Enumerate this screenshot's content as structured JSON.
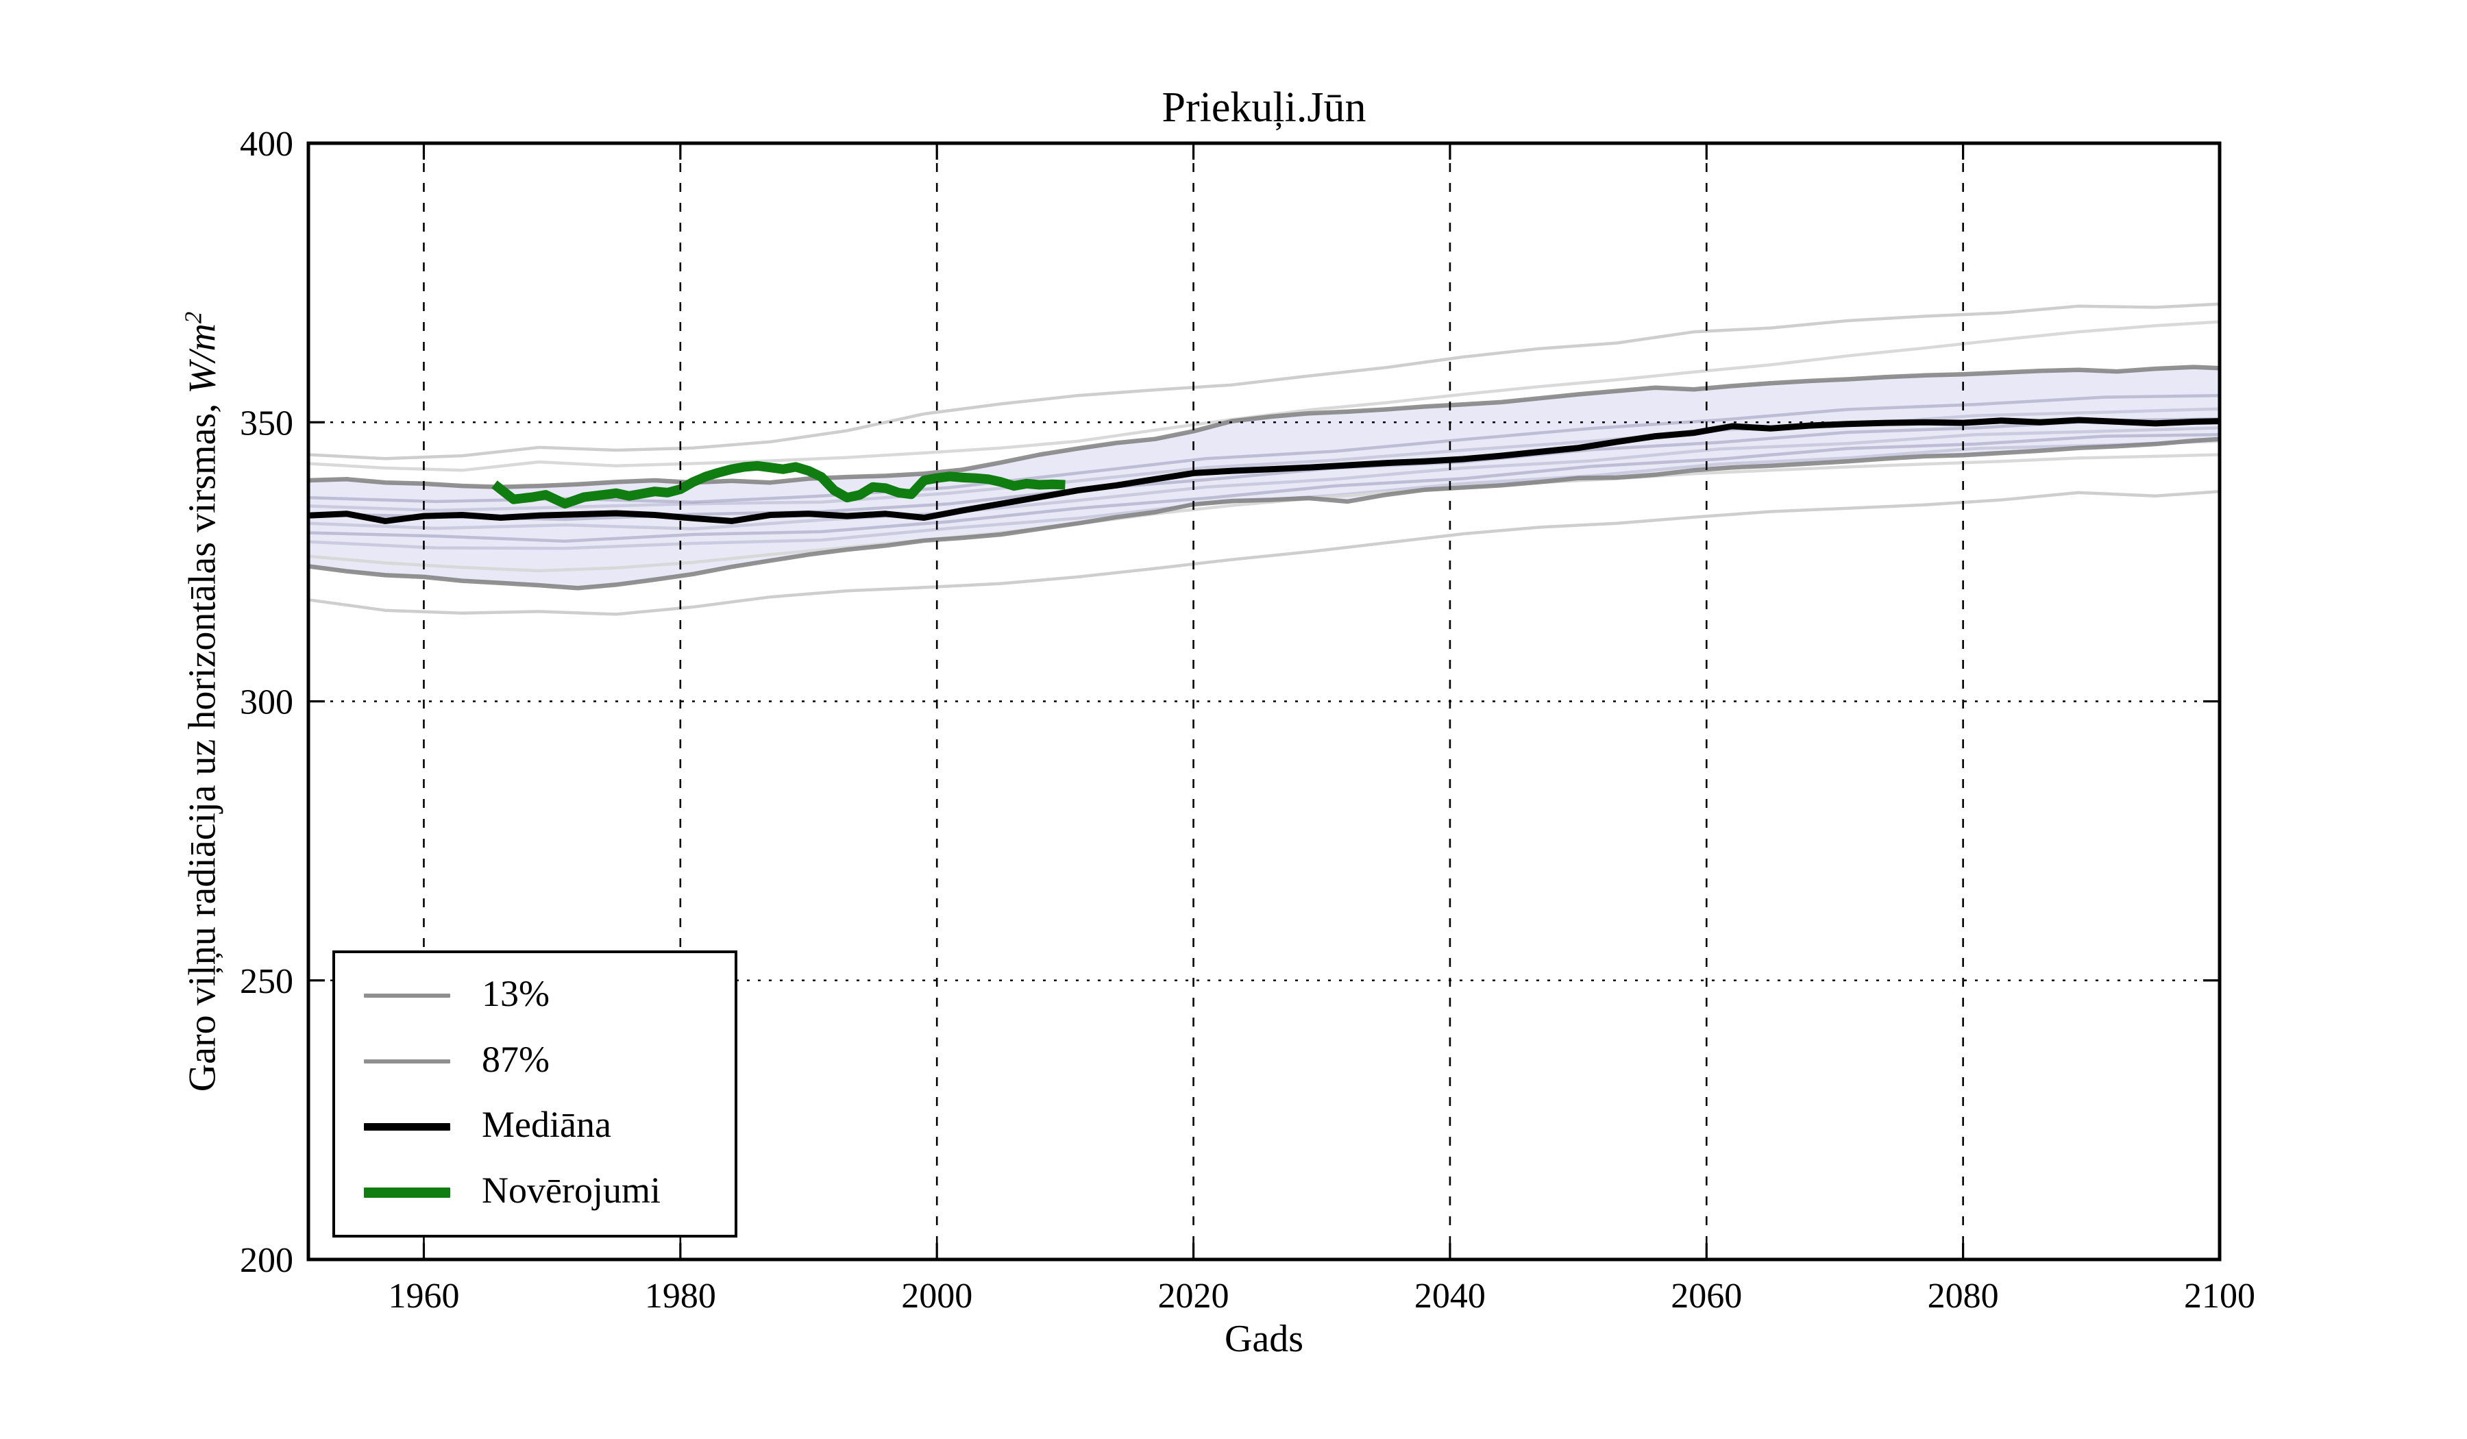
{
  "chart_data": {
    "type": "line",
    "title": "Priekuļi.Jūn",
    "xlabel": "Gads",
    "ylabel_text": "Garo viļņu radiācija uz horizontālas virsmas, ",
    "ylabel_math": "W/m",
    "ylabel_exponent": "2",
    "xlim": [
      1951,
      2100
    ],
    "ylim": [
      200,
      400
    ],
    "xticks": [
      1960,
      1980,
      2000,
      2020,
      2040,
      2060,
      2080,
      2100
    ],
    "yticks": [
      200,
      250,
      300,
      350,
      400
    ],
    "grid": true,
    "legend_position": "lower-left",
    "colors": {
      "background": "#ffffff",
      "frame": "#000000",
      "grid": "#000000",
      "band_fill": "#d8d8f2",
      "band_edge": "#7f7f7f",
      "median": "#000000",
      "observations": "#0f7d0f",
      "ensemble_outer": "#cbcbcb",
      "ensemble_outer2": "#d7d7d7",
      "ensemble_inner": "#8f8fb0",
      "legend_gray": "#8f8f8f"
    },
    "band": {
      "years": [
        1951,
        1954,
        1957,
        1960,
        1963,
        1966,
        1969,
        1972,
        1975,
        1978,
        1981,
        1984,
        1987,
        1990,
        1993,
        1996,
        1999,
        2002,
        2005,
        2008,
        2011,
        2014,
        2017,
        2020,
        2023,
        2026,
        2029,
        2032,
        2035,
        2038,
        2041,
        2044,
        2047,
        2050,
        2053,
        2056,
        2059,
        2062,
        2065,
        2068,
        2071,
        2074,
        2077,
        2080,
        2083,
        2086,
        2089,
        2092,
        2095,
        2098,
        2100
      ],
      "upper_87": [
        339.6,
        339.8,
        339.2,
        339.0,
        338.6,
        338.4,
        338.6,
        338.9,
        339.3,
        339.6,
        339.2,
        339.5,
        339.2,
        339.9,
        340.2,
        340.4,
        340.8,
        341.5,
        342.8,
        344.2,
        345.3,
        346.3,
        347.0,
        348.4,
        350.2,
        351.0,
        351.6,
        351.9,
        352.3,
        352.8,
        353.2,
        353.6,
        354.3,
        355.0,
        355.6,
        356.2,
        355.9,
        356.5,
        357.0,
        357.4,
        357.7,
        358.1,
        358.4,
        358.6,
        358.9,
        359.2,
        359.4,
        359.1,
        359.6,
        359.9,
        359.7
      ],
      "lower_13": [
        324.2,
        323.3,
        322.6,
        322.3,
        321.6,
        321.2,
        320.8,
        320.3,
        320.9,
        321.8,
        322.8,
        324.1,
        325.2,
        326.3,
        327.2,
        327.9,
        328.8,
        329.3,
        329.9,
        330.9,
        331.9,
        333.0,
        333.9,
        335.3,
        335.9,
        336.1,
        336.4,
        335.8,
        337.0,
        337.9,
        338.3,
        338.7,
        339.3,
        340.0,
        340.1,
        340.6,
        341.4,
        341.9,
        342.2,
        342.6,
        343.0,
        343.5,
        343.9,
        344.1,
        344.5,
        344.9,
        345.4,
        345.7,
        346.1,
        346.7,
        347.0
      ]
    },
    "series": [
      {
        "name": "Mediāna",
        "years": [
          1951,
          1954,
          1957,
          1960,
          1963,
          1966,
          1969,
          1972,
          1975,
          1978,
          1981,
          1984,
          1987,
          1990,
          1993,
          1996,
          1999,
          2002,
          2005,
          2008,
          2011,
          2014,
          2017,
          2020,
          2023,
          2026,
          2029,
          2032,
          2035,
          2038,
          2041,
          2044,
          2047,
          2050,
          2053,
          2056,
          2059,
          2062,
          2065,
          2068,
          2071,
          2074,
          2077,
          2080,
          2083,
          2086,
          2089,
          2092,
          2095,
          2098,
          2100
        ],
        "values": [
          333.3,
          333.6,
          332.3,
          333.2,
          333.4,
          332.9,
          333.3,
          333.5,
          333.7,
          333.4,
          332.8,
          332.3,
          333.4,
          333.6,
          333.2,
          333.6,
          332.9,
          334.2,
          335.4,
          336.6,
          337.8,
          338.7,
          339.8,
          340.9,
          341.3,
          341.6,
          341.9,
          342.3,
          342.7,
          343.0,
          343.4,
          344.0,
          344.7,
          345.4,
          346.5,
          347.5,
          348.1,
          349.3,
          348.9,
          349.4,
          349.7,
          349.9,
          350.0,
          349.9,
          350.3,
          350.0,
          350.4,
          350.1,
          349.8,
          350.1,
          350.2
        ]
      },
      {
        "name": "Novērojumi",
        "years": [
          1965.5,
          1967,
          1968.5,
          1969.5,
          1971,
          1972.5,
          1974,
          1975,
          1976,
          1977,
          1978,
          1979,
          1980,
          1981,
          1982,
          1983,
          1984,
          1985,
          1986,
          1987,
          1988,
          1989,
          1990,
          1991,
          1992,
          1993,
          1994,
          1995,
          1996,
          1997,
          1998,
          1999,
          2000,
          2001,
          2002,
          2003,
          2004,
          2005,
          2006,
          2007,
          2008,
          2009,
          2010
        ],
        "values": [
          338.9,
          336.2,
          336.6,
          337.0,
          335.4,
          336.6,
          337.0,
          337.3,
          336.8,
          337.2,
          337.6,
          337.4,
          338.0,
          339.3,
          340.3,
          341.0,
          341.6,
          342.0,
          342.2,
          341.9,
          341.6,
          342.0,
          341.3,
          340.2,
          337.8,
          336.5,
          337.0,
          338.4,
          338.2,
          337.4,
          337.1,
          339.6,
          340.0,
          340.3,
          340.1,
          340.0,
          339.8,
          339.3,
          338.6,
          339.0,
          338.8,
          338.9,
          338.8
        ]
      }
    ],
    "outer_lines": [
      {
        "name": "ensemble-max-line",
        "tone": "outer",
        "years": [
          1951,
          1957,
          1963,
          1969,
          1975,
          1981,
          1987,
          1993,
          1999,
          2005,
          2011,
          2017,
          2023,
          2029,
          2035,
          2041,
          2047,
          2053,
          2059,
          2065,
          2071,
          2077,
          2083,
          2089,
          2095,
          2100
        ],
        "values": [
          344.2,
          343.5,
          344.0,
          345.5,
          345.0,
          345.4,
          346.5,
          348.5,
          351.5,
          353.3,
          354.8,
          355.8,
          356.7,
          358.3,
          359.8,
          361.7,
          363.2,
          364.2,
          366.2,
          366.9,
          368.2,
          369.0,
          369.6,
          370.8,
          370.6,
          371.2
        ]
      },
      {
        "name": "ensemble-high-line",
        "tone": "outer2",
        "years": [
          1951,
          1957,
          1963,
          1969,
          1975,
          1981,
          1987,
          1993,
          1999,
          2005,
          2011,
          2017,
          2023,
          2029,
          2035,
          2041,
          2047,
          2053,
          2059,
          2065,
          2071,
          2077,
          2083,
          2089,
          2095,
          2100
        ],
        "values": [
          342.6,
          341.8,
          341.4,
          342.9,
          342.2,
          342.6,
          343.1,
          343.7,
          344.5,
          345.4,
          346.6,
          348.6,
          350.5,
          352.2,
          353.5,
          355.0,
          356.4,
          357.6,
          359.0,
          360.3,
          361.9,
          363.3,
          364.8,
          366.2,
          367.3,
          368.0
        ]
      },
      {
        "name": "ensemble-low-line",
        "tone": "outer2",
        "years": [
          1951,
          1957,
          1963,
          1969,
          1975,
          1981,
          1987,
          1993,
          1999,
          2005,
          2011,
          2017,
          2023,
          2029,
          2035,
          2041,
          2047,
          2053,
          2059,
          2065,
          2071,
          2077,
          2083,
          2089,
          2095,
          2100
        ],
        "values": [
          326.0,
          324.8,
          324.0,
          323.4,
          323.9,
          324.9,
          326.3,
          327.6,
          328.9,
          330.2,
          331.8,
          333.6,
          335.1,
          336.3,
          337.4,
          338.3,
          339.2,
          339.9,
          340.8,
          341.4,
          342.0,
          342.5,
          343.0,
          343.6,
          343.9,
          344.2
        ]
      },
      {
        "name": "ensemble-min-line",
        "tone": "outer",
        "years": [
          1951,
          1957,
          1963,
          1969,
          1975,
          1981,
          1987,
          1993,
          1999,
          2005,
          2011,
          2017,
          2023,
          2029,
          2035,
          2041,
          2047,
          2053,
          2059,
          2065,
          2071,
          2077,
          2083,
          2089,
          2095,
          2100
        ],
        "values": [
          318.2,
          316.3,
          315.8,
          316.1,
          315.6,
          316.9,
          318.7,
          319.8,
          320.4,
          321.1,
          322.3,
          323.8,
          325.4,
          326.8,
          328.4,
          330.0,
          331.2,
          331.9,
          333.0,
          334.0,
          334.6,
          335.2,
          336.1,
          337.4,
          336.8,
          337.6
        ]
      }
    ],
    "ensemble_members": [
      {
        "years": [
          1951,
          1961,
          1971,
          1981,
          1991,
          2001,
          2011,
          2021,
          2031,
          2041,
          2051,
          2061,
          2071,
          2081,
          2091,
          2100
        ],
        "values": [
          336.5,
          335.8,
          336.3,
          335.7,
          336.8,
          338.3,
          340.9,
          343.5,
          344.8,
          346.9,
          348.9,
          350.4,
          352.3,
          353.2,
          354.5,
          354.8
        ]
      },
      {
        "years": [
          1951,
          1961,
          1971,
          1981,
          1991,
          2001,
          2011,
          2021,
          2031,
          2041,
          2051,
          2061,
          2071,
          2081,
          2091,
          2100
        ],
        "values": [
          335.0,
          334.2,
          334.8,
          335.4,
          335.7,
          337.3,
          339.5,
          341.9,
          343.2,
          345.0,
          346.6,
          348.6,
          349.6,
          351.2,
          351.8,
          352.4
        ]
      },
      {
        "years": [
          1951,
          1961,
          1971,
          1981,
          1991,
          2001,
          2011,
          2021,
          2031,
          2041,
          2051,
          2061,
          2071,
          2081,
          2091,
          2100
        ],
        "values": [
          333.6,
          333.1,
          332.6,
          333.5,
          334.0,
          335.4,
          337.9,
          339.7,
          341.8,
          342.9,
          345.1,
          346.4,
          348.2,
          349.0,
          350.3,
          350.6
        ]
      },
      {
        "years": [
          1951,
          1961,
          1971,
          1981,
          1991,
          2001,
          2011,
          2021,
          2031,
          2041,
          2051,
          2061,
          2071,
          2081,
          2091,
          2100
        ],
        "values": [
          331.9,
          331.0,
          331.6,
          330.9,
          332.5,
          333.8,
          336.0,
          338.4,
          339.8,
          341.8,
          343.1,
          345.2,
          346.2,
          347.8,
          348.4,
          349.0
        ]
      },
      {
        "years": [
          1951,
          1961,
          1971,
          1981,
          1991,
          2001,
          2011,
          2021,
          2031,
          2041,
          2051,
          2061,
          2071,
          2081,
          2091,
          2100
        ],
        "values": [
          330.2,
          329.6,
          328.7,
          329.9,
          330.4,
          332.2,
          334.6,
          336.4,
          338.6,
          339.9,
          342.1,
          343.4,
          345.3,
          346.1,
          347.5,
          347.8
        ]
      },
      {
        "years": [
          1951,
          1961,
          1971,
          1981,
          1991,
          2001,
          2011,
          2021,
          2031,
          2041,
          2051,
          2061,
          2071,
          2081,
          2091,
          2100
        ],
        "values": [
          328.6,
          327.5,
          327.4,
          328.3,
          328.9,
          331.0,
          332.8,
          335.4,
          336.9,
          339.0,
          340.4,
          342.5,
          343.6,
          345.3,
          345.9,
          346.6
        ]
      }
    ],
    "legend": {
      "items": [
        {
          "label": "13%",
          "color": "#8f8f8f",
          "line_height": 6
        },
        {
          "label": "87%",
          "color": "#8f8f8f",
          "line_height": 6
        },
        {
          "label": "Mediāna",
          "color": "#000000",
          "line_height": 11
        },
        {
          "label": "Novērojumi",
          "color": "#0f7d0f",
          "line_height": 15
        }
      ]
    }
  }
}
